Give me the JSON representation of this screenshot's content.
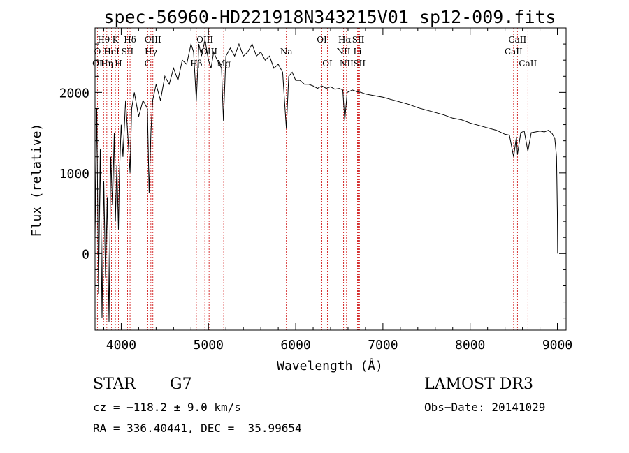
{
  "chart_data": {
    "type": "line",
    "title": "spec-56960-HD221918N343215V01_sp12-009.fits",
    "xlabel": "Wavelength (Å)",
    "ylabel": "Flux (relative)",
    "xlim": [
      3700,
      9100
    ],
    "ylim": [
      -950,
      2800
    ],
    "x_ticks": [
      4000,
      5000,
      6000,
      7000,
      8000,
      9000
    ],
    "y_ticks": [
      0,
      1000,
      2000
    ],
    "series": [
      {
        "name": "flux",
        "points": [
          [
            3700,
            200
          ],
          [
            3720,
            1800
          ],
          [
            3740,
            -500
          ],
          [
            3760,
            1300
          ],
          [
            3780,
            -800
          ],
          [
            3800,
            900
          ],
          [
            3820,
            -300
          ],
          [
            3840,
            700
          ],
          [
            3860,
            -850
          ],
          [
            3880,
            1200
          ],
          [
            3900,
            600
          ],
          [
            3920,
            1500
          ],
          [
            3933,
            400
          ],
          [
            3950,
            1100
          ],
          [
            3968,
            300
          ],
          [
            3980,
            1000
          ],
          [
            4000,
            1600
          ],
          [
            4020,
            1200
          ],
          [
            4050,
            1900
          ],
          [
            4080,
            1400
          ],
          [
            4101,
            1000
          ],
          [
            4120,
            1800
          ],
          [
            4150,
            2000
          ],
          [
            4200,
            1700
          ],
          [
            4250,
            1900
          ],
          [
            4300,
            1800
          ],
          [
            4320,
            750
          ],
          [
            4340,
            1500
          ],
          [
            4360,
            1900
          ],
          [
            4400,
            2100
          ],
          [
            4450,
            1900
          ],
          [
            4500,
            2200
          ],
          [
            4550,
            2100
          ],
          [
            4600,
            2300
          ],
          [
            4650,
            2150
          ],
          [
            4700,
            2400
          ],
          [
            4750,
            2350
          ],
          [
            4800,
            2600
          ],
          [
            4830,
            2500
          ],
          [
            4861,
            1900
          ],
          [
            4890,
            2600
          ],
          [
            4920,
            2450
          ],
          [
            4960,
            2650
          ],
          [
            5000,
            2400
          ],
          [
            5030,
            2300
          ],
          [
            5060,
            2500
          ],
          [
            5100,
            2400
          ],
          [
            5150,
            2300
          ],
          [
            5172,
            1650
          ],
          [
            5200,
            2450
          ],
          [
            5250,
            2550
          ],
          [
            5300,
            2450
          ],
          [
            5350,
            2600
          ],
          [
            5400,
            2450
          ],
          [
            5450,
            2500
          ],
          [
            5500,
            2600
          ],
          [
            5550,
            2450
          ],
          [
            5600,
            2500
          ],
          [
            5650,
            2400
          ],
          [
            5700,
            2450
          ],
          [
            5750,
            2300
          ],
          [
            5800,
            2350
          ],
          [
            5850,
            2250
          ],
          [
            5893,
            1550
          ],
          [
            5920,
            2200
          ],
          [
            5960,
            2250
          ],
          [
            6000,
            2150
          ],
          [
            6050,
            2150
          ],
          [
            6100,
            2100
          ],
          [
            6150,
            2100
          ],
          [
            6200,
            2080
          ],
          [
            6250,
            2050
          ],
          [
            6300,
            2080
          ],
          [
            6350,
            2050
          ],
          [
            6400,
            2070
          ],
          [
            6450,
            2040
          ],
          [
            6500,
            2050
          ],
          [
            6540,
            2030
          ],
          [
            6563,
            1650
          ],
          [
            6590,
            2000
          ],
          [
            6650,
            2030
          ],
          [
            6700,
            2010
          ],
          [
            6750,
            2000
          ],
          [
            6800,
            1980
          ],
          [
            6900,
            1960
          ],
          [
            7000,
            1940
          ],
          [
            7100,
            1910
          ],
          [
            7200,
            1880
          ],
          [
            7300,
            1850
          ],
          [
            7400,
            1810
          ],
          [
            7500,
            1780
          ],
          [
            7600,
            1750
          ],
          [
            7700,
            1720
          ],
          [
            7800,
            1680
          ],
          [
            7900,
            1660
          ],
          [
            8000,
            1620
          ],
          [
            8100,
            1590
          ],
          [
            8200,
            1560
          ],
          [
            8300,
            1530
          ],
          [
            8400,
            1480
          ],
          [
            8450,
            1470
          ],
          [
            8498,
            1200
          ],
          [
            8530,
            1450
          ],
          [
            8542,
            1230
          ],
          [
            8580,
            1500
          ],
          [
            8620,
            1520
          ],
          [
            8662,
            1270
          ],
          [
            8700,
            1500
          ],
          [
            8750,
            1510
          ],
          [
            8800,
            1520
          ],
          [
            8850,
            1510
          ],
          [
            8900,
            1530
          ],
          [
            8940,
            1490
          ],
          [
            8970,
            1430
          ],
          [
            8990,
            1200
          ],
          [
            9000,
            500
          ],
          [
            9003,
            0
          ]
        ]
      }
    ],
    "line_markers": [
      {
        "label": "O",
        "x": 3727,
        "row": 2
      },
      {
        "label": "OI",
        "x": 3727,
        "row": 3
      },
      {
        "label": "Hθ",
        "x": 3798,
        "row": 1
      },
      {
        "label": "HeI",
        "x": 3889,
        "row": 2
      },
      {
        "label": "Hη",
        "x": 3835,
        "row": 3
      },
      {
        "label": "K",
        "x": 3933,
        "row": 1
      },
      {
        "label": "H",
        "x": 3968,
        "row": 3
      },
      {
        "label": "SII",
        "x": 4072,
        "row": 2
      },
      {
        "label": "Hδ",
        "x": 4101,
        "row": 1
      },
      {
        "label": "OIII",
        "x": 4363,
        "row": 1
      },
      {
        "label": "Hγ",
        "x": 4340,
        "row": 2
      },
      {
        "label": "G",
        "x": 4304,
        "row": 3
      },
      {
        "label": "Hβ",
        "x": 4861,
        "row": 3
      },
      {
        "label": "OIII",
        "x": 4959,
        "row": 1
      },
      {
        "label": "OIII",
        "x": 5007,
        "row": 2
      },
      {
        "label": "Mg",
        "x": 5175,
        "row": 3
      },
      {
        "label": "Na",
        "x": 5893,
        "row": 2
      },
      {
        "label": "OI",
        "x": 6300,
        "row": 1
      },
      {
        "label": "OI",
        "x": 6364,
        "row": 3
      },
      {
        "label": "Hα",
        "x": 6563,
        "row": 1
      },
      {
        "label": "NII",
        "x": 6548,
        "row": 2
      },
      {
        "label": "NII",
        "x": 6583,
        "row": 3
      },
      {
        "label": "SII",
        "x": 6717,
        "row": 1
      },
      {
        "label": "Li",
        "x": 6708,
        "row": 2
      },
      {
        "label": "SII",
        "x": 6731,
        "row": 3
      },
      {
        "label": "CaII",
        "x": 8542,
        "row": 1
      },
      {
        "label": "CaII",
        "x": 8498,
        "row": 2
      },
      {
        "label": "CaII",
        "x": 8662,
        "row": 3
      }
    ]
  },
  "info": {
    "object_type": "STAR",
    "subclass": "G7",
    "survey": "LAMOST DR3",
    "cz": "cz = −118.2 ± 9.0 km/s",
    "obs_date": "Obs−Date: 20141029",
    "radec": "RA = 336.40441, DEC =  35.99654"
  },
  "colors": {
    "axis": "#000000",
    "spectrum": "#000000",
    "marker_line": "#cc0000"
  }
}
